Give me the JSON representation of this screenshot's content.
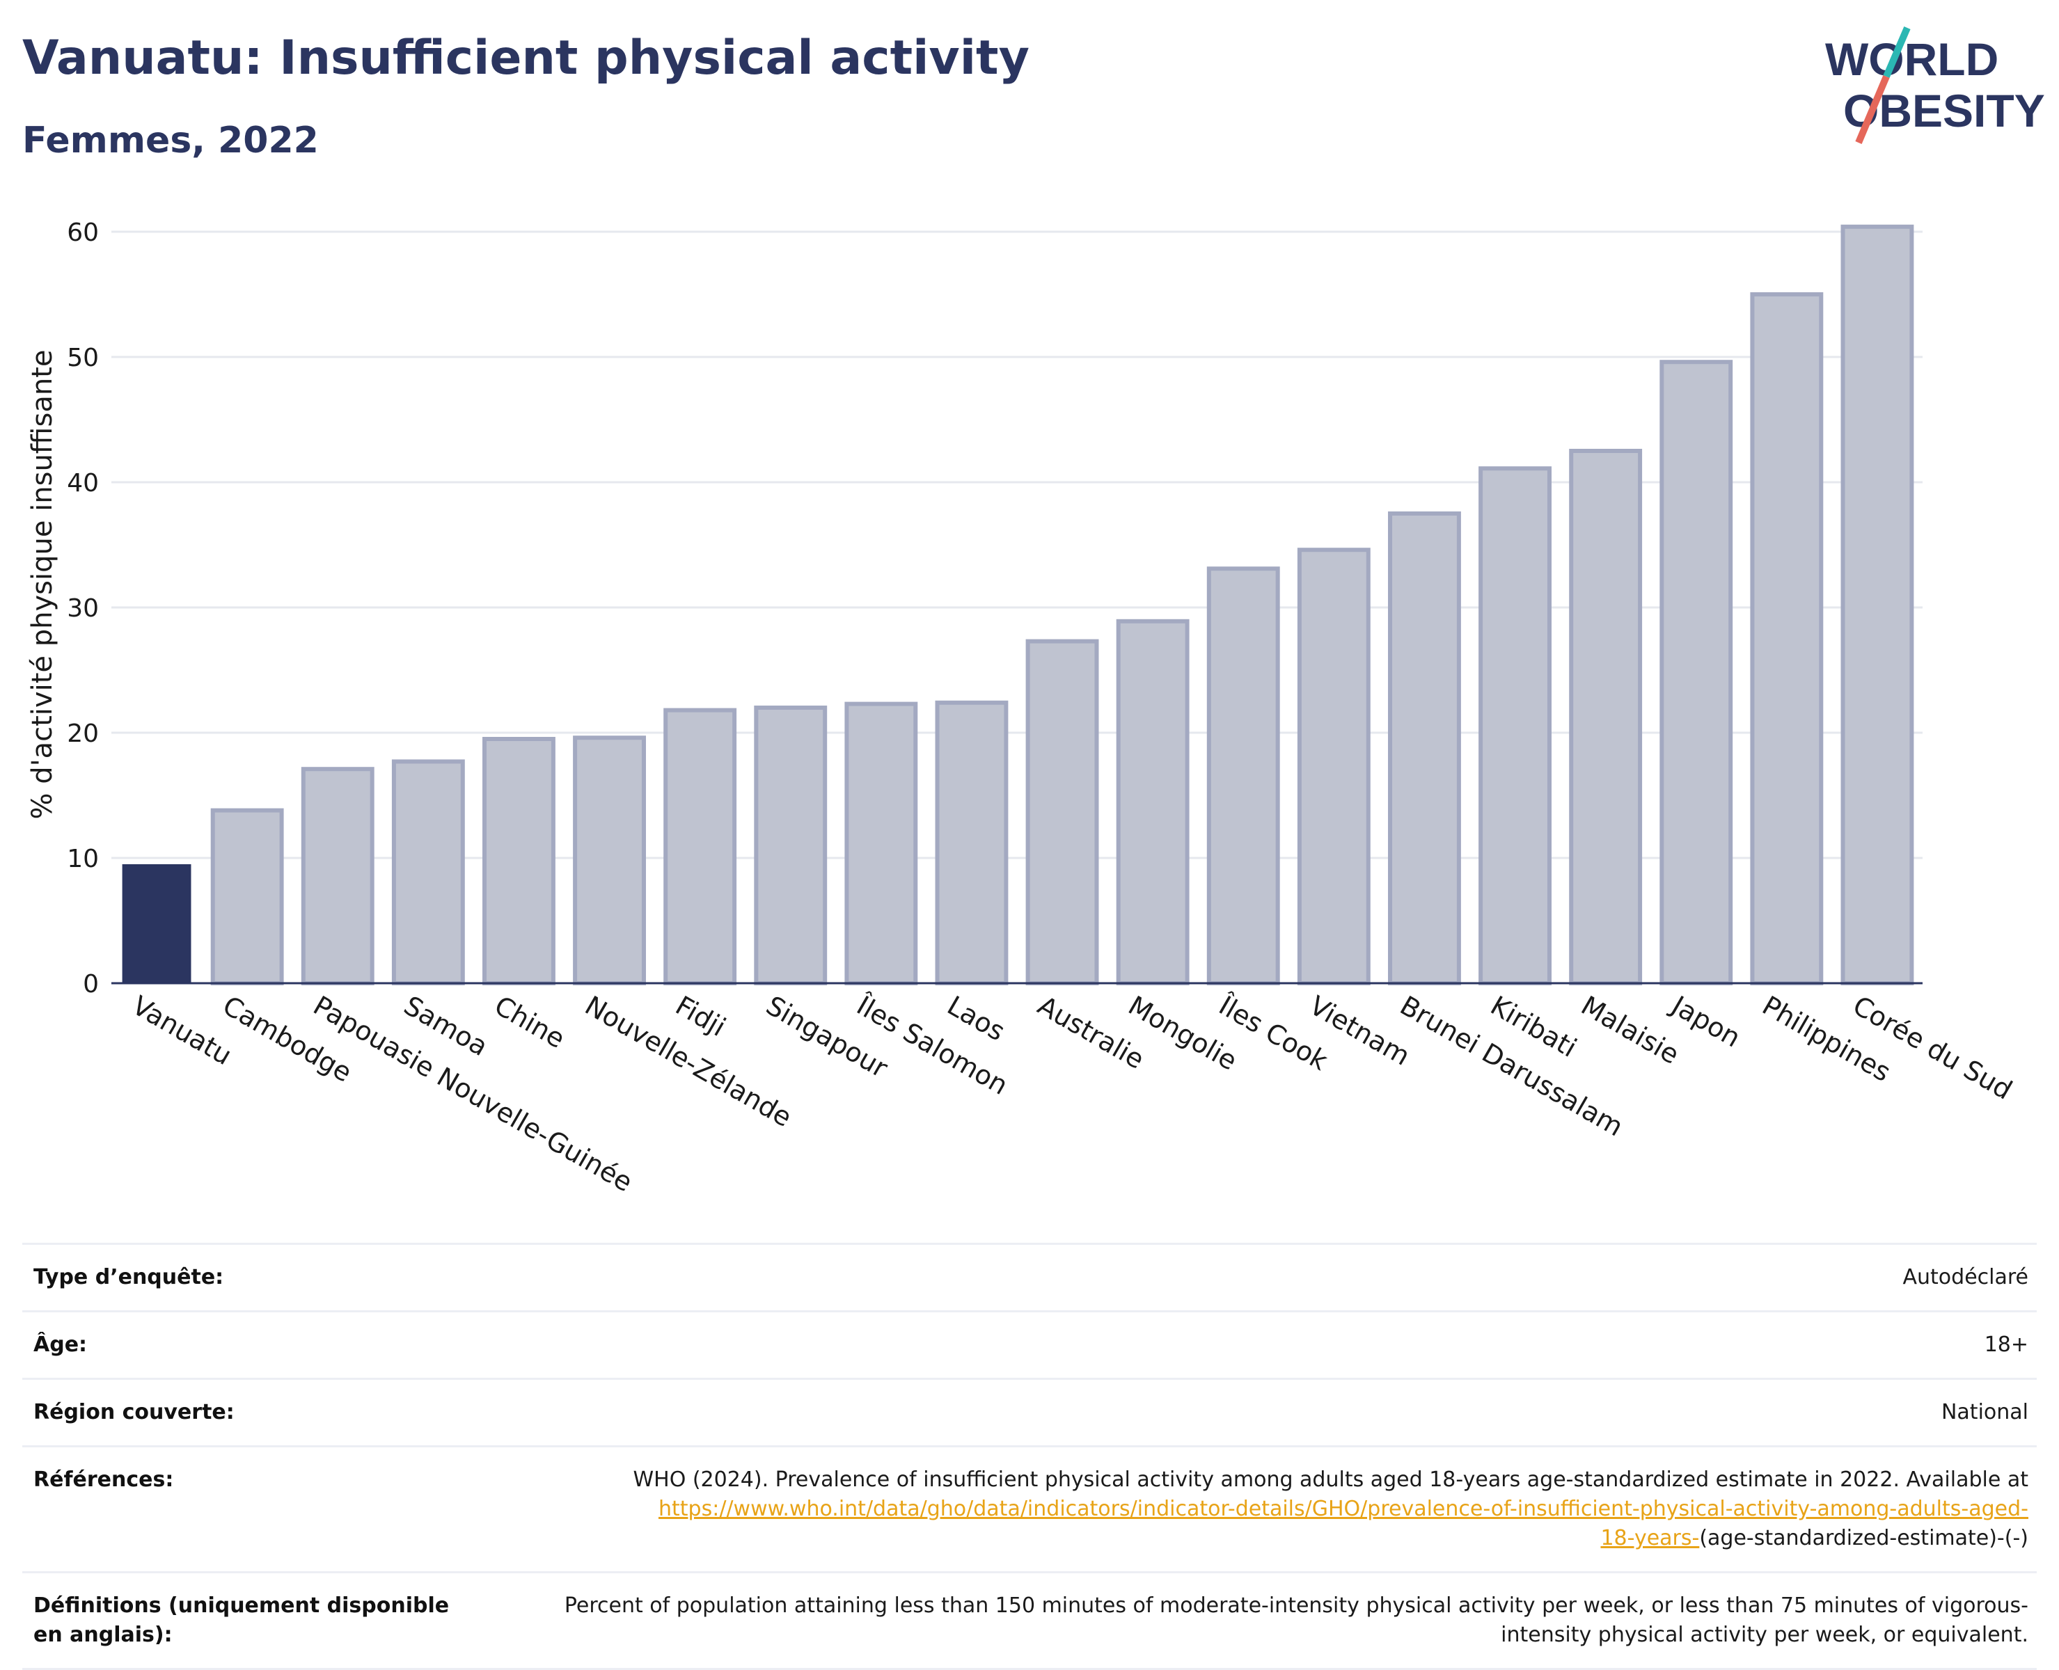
{
  "header": {
    "title": "Vanuatu: Insufficient physical activity",
    "subtitle": "Femmes, 2022"
  },
  "logo": {
    "line1": "WORLD",
    "line2": "OBESITY",
    "accent_teal": "#2bb7b3",
    "accent_coral": "#e5675a"
  },
  "colors": {
    "highlight": "#2b3560",
    "bar_fill": "#bfc3d0",
    "bar_stroke": "#a3a9c1",
    "axis": "#2b3560",
    "grid": "#e6e8ee"
  },
  "chart_data": {
    "type": "bar",
    "ylabel": "% d'activité physique insuffisante",
    "xlabel": "",
    "ylim": [
      0,
      62
    ],
    "yticks": [
      0,
      10,
      20,
      30,
      40,
      50,
      60
    ],
    "grid": true,
    "highlight": "Vanuatu",
    "categories": [
      "Vanuatu",
      "Cambodge",
      "Papouasie Nouvelle-Guinée",
      "Samoa",
      "Chine",
      "Nouvelle-Zélande",
      "Fidji",
      "Singapour",
      "Îles Salomon",
      "Laos",
      "Australie",
      "Mongolie",
      "Îles Cook",
      "Vietnam",
      "Brunei Darussalam",
      "Kiribati",
      "Malaisie",
      "Japon",
      "Philippines",
      "Corée du Sud"
    ],
    "values": [
      9.5,
      13.8,
      17.1,
      17.7,
      19.5,
      19.6,
      21.8,
      22.0,
      22.3,
      22.4,
      27.3,
      28.9,
      33.1,
      34.6,
      37.5,
      41.1,
      42.5,
      49.6,
      55.0,
      60.4
    ]
  },
  "info": {
    "survey_type": {
      "label": "Type d’enquête:",
      "value": "Autodéclaré"
    },
    "age": {
      "label": "Âge:",
      "value": "18+"
    },
    "region": {
      "label": "Région couverte:",
      "value": "National"
    },
    "references": {
      "label": "Références:",
      "text": "WHO (2024). Prevalence of insufficient physical activity among adults aged 18-years age-standardized estimate in 2022. Available at",
      "link_line1": "https://www.who.int/data/gho/data/indicators/indicator-details/GHO/prevalence-of-insufficient-physical-activity-among-adults-aged-",
      "link_line2": "18-years-",
      "suffix": "(age-standardized-estimate)-(-)"
    },
    "definitions": {
      "label": "Définitions (uniquement disponible en anglais):",
      "value": "Percent of population attaining less than 150 minutes of moderate-intensity physical activity per week, or less than 75 minutes of vigorous-intensity physical activity per week, or equivalent."
    }
  }
}
